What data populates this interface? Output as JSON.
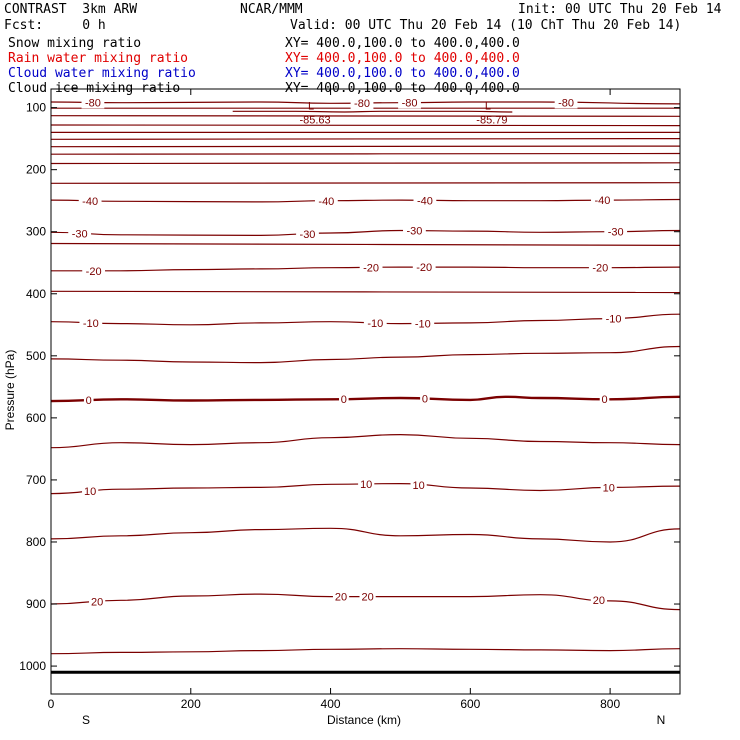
{
  "header": {
    "title_left": "CONTRAST  3km ARW",
    "title_center": "NCAR/MMM",
    "init": "Init: 00 UTC Thu 20 Feb 14",
    "fcst": "Fcst:     0 h",
    "valid": "Valid: 00 UTC Thu 20 Feb 14 (10 ChT Thu 20 Feb 14)"
  },
  "legend": [
    {
      "label": "Snow mixing ratio",
      "xy": "XY= 400.0,100.0 to 400.0,400.0",
      "color": "#000000"
    },
    {
      "label": "Rain water mixing ratio",
      "xy": "XY= 400.0,100.0 to 400.0,400.0",
      "color": "#e00000"
    },
    {
      "label": "Cloud water mixing ratio",
      "xy": "XY= 400.0,100.0 to 400.0,400.0",
      "color": "#0000c8"
    },
    {
      "label": "Cloud ice mixing ratio",
      "xy": "XY= 400.0,100.0 to 400.0,400.0",
      "color": "#000000"
    }
  ],
  "chart_data": {
    "type": "line",
    "xlabel": "Distance (km)",
    "ylabel": "Pressure (hPa)",
    "xlim": [
      0,
      900
    ],
    "ylim": [
      1045,
      70
    ],
    "x_ticks": [
      0,
      200,
      400,
      600,
      800
    ],
    "y_ticks": [
      100,
      200,
      300,
      400,
      500,
      600,
      700,
      800,
      900,
      1000
    ],
    "x_endpoint_labels": {
      "left": "S",
      "right": "N"
    },
    "contour_color": "#7b0000",
    "surface_pressure": 1010,
    "surface_color": "#000000",
    "min_labels": [
      {
        "x": 375,
        "p": 106,
        "mark": "L",
        "value": "-85.63"
      },
      {
        "x": 628,
        "p": 106,
        "mark": "L",
        "value": "-85.79"
      }
    ],
    "series": [
      {
        "name": "-80",
        "x": [
          0,
          100,
          300,
          400,
          500,
          600,
          700,
          900
        ],
        "p": [
          91,
          92,
          91,
          93,
          92,
          91,
          91,
          94
        ],
        "labels": [
          {
            "x": 60,
            "text": "-80"
          },
          {
            "x": 445,
            "text": "-80"
          },
          {
            "x": 513,
            "text": "-80"
          },
          {
            "x": 737,
            "text": "-80"
          }
        ]
      },
      {
        "x": [
          0,
          900
        ],
        "p": [
          101,
          101
        ],
        "labels": []
      },
      {
        "x": [
          260,
          350,
          420,
          470,
          540,
          600,
          660
        ],
        "p": [
          106,
          106,
          107,
          106,
          106,
          106,
          107
        ],
        "labels": []
      },
      {
        "x": [
          0,
          900
        ],
        "p": [
          113,
          114
        ],
        "labels": []
      },
      {
        "x": [
          0,
          900
        ],
        "p": [
          128,
          129
        ],
        "labels": []
      },
      {
        "x": [
          0,
          900
        ],
        "p": [
          140,
          140
        ],
        "labels": []
      },
      {
        "x": [
          0,
          900
        ],
        "p": [
          151,
          150
        ],
        "labels": []
      },
      {
        "x": [
          0,
          900
        ],
        "p": [
          163,
          162
        ],
        "labels": []
      },
      {
        "x": [
          0,
          900
        ],
        "p": [
          175,
          174
        ],
        "labels": []
      },
      {
        "x": [
          0,
          900
        ],
        "p": [
          190,
          189
        ],
        "labels": []
      },
      {
        "x": [
          0,
          900
        ],
        "p": [
          222,
          221
        ],
        "labels": []
      },
      {
        "name": "-40",
        "x": [
          0,
          100,
          300,
          400,
          500,
          600,
          700,
          800,
          900
        ],
        "p": [
          249,
          251,
          252,
          250,
          249,
          250,
          250,
          249,
          248
        ],
        "labels": [
          {
            "x": 56,
            "text": "-40"
          },
          {
            "x": 394,
            "text": "-40"
          },
          {
            "x": 535,
            "text": "-40"
          },
          {
            "x": 789,
            "text": "-40"
          }
        ]
      },
      {
        "name": "-30",
        "x": [
          0,
          100,
          300,
          400,
          500,
          600,
          700,
          800,
          900
        ],
        "p": [
          301,
          305,
          306,
          302,
          298,
          299,
          301,
          300,
          298
        ],
        "labels": [
          {
            "x": 41,
            "text": "-30"
          },
          {
            "x": 367,
            "text": "-30"
          },
          {
            "x": 520,
            "text": "-30"
          },
          {
            "x": 808,
            "text": "-30"
          }
        ]
      },
      {
        "x": [
          0,
          900
        ],
        "p": [
          319,
          322
        ],
        "labels": []
      },
      {
        "name": "-20",
        "x": [
          0,
          100,
          200,
          300,
          400,
          500,
          600,
          700,
          800,
          900
        ],
        "p": [
          363,
          363,
          361,
          360,
          358,
          357,
          357,
          358,
          358,
          357
        ],
        "labels": [
          {
            "x": 61,
            "text": "-20"
          },
          {
            "x": 458,
            "text": "-20"
          },
          {
            "x": 534,
            "text": "-20"
          },
          {
            "x": 786,
            "text": "-20"
          }
        ]
      },
      {
        "x": [
          0,
          900
        ],
        "p": [
          396,
          398
        ],
        "labels": []
      },
      {
        "name": "-10",
        "x": [
          0,
          100,
          200,
          300,
          400,
          500,
          600,
          700,
          800,
          900
        ],
        "p": [
          445,
          448,
          450,
          447,
          445,
          448,
          447,
          443,
          440,
          433
        ],
        "labels": [
          {
            "x": 57,
            "text": "-10"
          },
          {
            "x": 464,
            "text": "-10"
          },
          {
            "x": 532,
            "text": "-10"
          },
          {
            "x": 805,
            "text": "-10"
          }
        ]
      },
      {
        "x": [
          0,
          100,
          200,
          300,
          400,
          500,
          600,
          700,
          800,
          900
        ],
        "p": [
          505,
          507,
          510,
          511,
          506,
          502,
          498,
          496,
          495,
          485
        ],
        "labels": []
      },
      {
        "name": "0",
        "x": [
          0,
          100,
          200,
          300,
          400,
          500,
          600,
          650,
          700,
          800,
          900
        ],
        "p": [
          573,
          570,
          572,
          571,
          570,
          568,
          571,
          566,
          568,
          570,
          566
        ],
        "labels": [
          {
            "x": 54,
            "text": "0"
          },
          {
            "x": 419,
            "text": "0"
          },
          {
            "x": 535,
            "text": "0"
          },
          {
            "x": 792,
            "text": "0"
          }
        ]
      },
      {
        "x": [
          0,
          100,
          200,
          300,
          400,
          500,
          600,
          700,
          800,
          900
        ],
        "p": [
          648,
          640,
          643,
          640,
          632,
          627,
          633,
          638,
          640,
          643
        ],
        "labels": []
      },
      {
        "name": "10",
        "x": [
          0,
          100,
          200,
          300,
          400,
          500,
          600,
          700,
          800,
          900
        ],
        "p": [
          722,
          715,
          713,
          712,
          707,
          706,
          713,
          717,
          712,
          710
        ],
        "labels": [
          {
            "x": 56,
            "text": "10"
          },
          {
            "x": 451,
            "text": "10"
          },
          {
            "x": 526,
            "text": "10"
          },
          {
            "x": 798,
            "text": "10"
          }
        ]
      },
      {
        "x": [
          0,
          100,
          200,
          300,
          400,
          500,
          600,
          700,
          800,
          900
        ],
        "p": [
          795,
          790,
          785,
          780,
          778,
          790,
          788,
          795,
          800,
          779
        ],
        "labels": []
      },
      {
        "name": "20",
        "x": [
          0,
          100,
          200,
          300,
          400,
          500,
          600,
          700,
          800,
          900
        ],
        "p": [
          900,
          894,
          887,
          884,
          888,
          888,
          888,
          885,
          895,
          909
        ],
        "labels": [
          {
            "x": 66,
            "text": "20"
          },
          {
            "x": 415,
            "text": "20"
          },
          {
            "x": 453,
            "text": "20"
          },
          {
            "x": 784,
            "text": "20"
          }
        ]
      },
      {
        "x": [
          0,
          100,
          200,
          300,
          400,
          500,
          600,
          700,
          800,
          900
        ],
        "p": [
          980,
          978,
          977,
          975,
          973,
          972,
          973,
          974,
          975,
          972
        ],
        "labels": []
      }
    ]
  }
}
